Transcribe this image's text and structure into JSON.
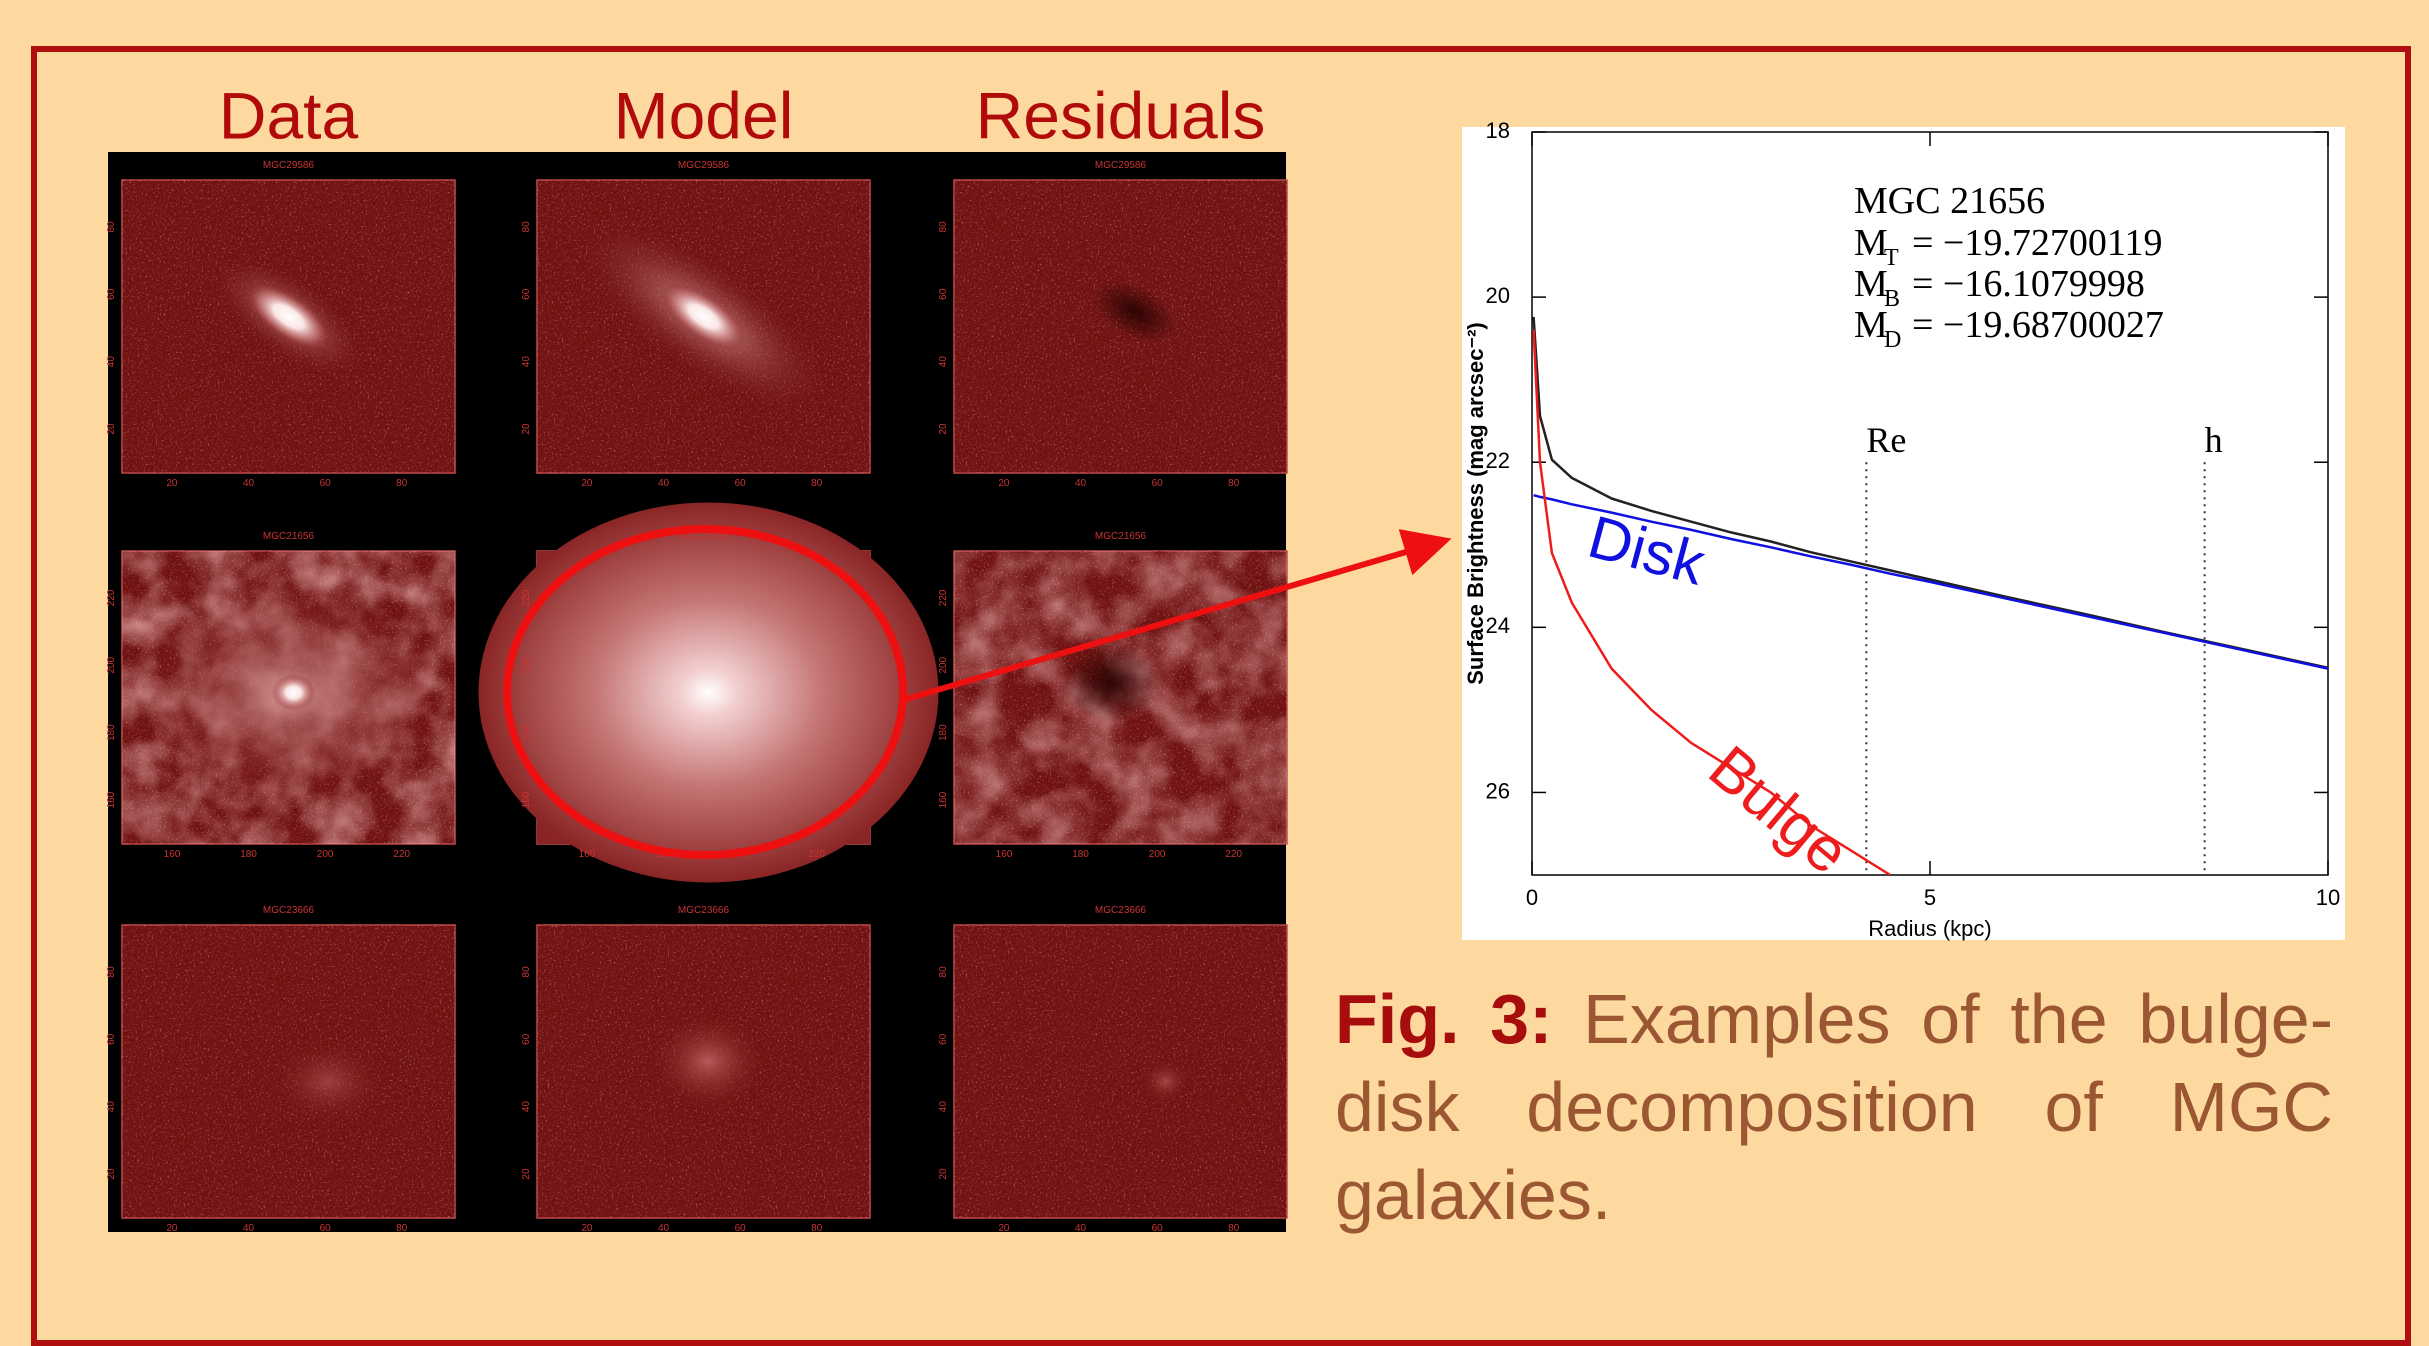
{
  "columns": [
    "Data",
    "Model",
    "Residuals"
  ],
  "galaxies": [
    {
      "label": "MGC29586",
      "ticks": [
        20,
        40,
        60,
        80
      ]
    },
    {
      "label": "MGC21656",
      "ticks": [
        160,
        180,
        200,
        220
      ]
    },
    {
      "label": "MGC23666",
      "ticks": [
        20,
        40,
        60,
        80
      ]
    }
  ],
  "chart_data": {
    "type": "line",
    "title": "MGC 21656",
    "annotations": [
      {
        "symbol": "M",
        "subscript": "T",
        "text": "= −19.72700119"
      },
      {
        "symbol": "M",
        "subscript": "B",
        "text": "= −16.1079998"
      },
      {
        "symbol": "M",
        "subscript": "D",
        "text": "= −19.68700027"
      }
    ],
    "x_label": "Radius (kpc)",
    "y_label": "Surface Brightness (mag arcsec⁻²)",
    "x": [
      0.02,
      0.1,
      0.25,
      0.5,
      1,
      1.5,
      2,
      2.5,
      3,
      3.5,
      4,
      4.5,
      5,
      6,
      7,
      8,
      9,
      10
    ],
    "series": [
      {
        "color": "#222222",
        "values": [
          20.24,
          21.44,
          21.97,
          22.19,
          22.44,
          22.59,
          22.72,
          22.85,
          22.96,
          23.09,
          23.2,
          23.31,
          23.42,
          23.64,
          23.85,
          24.07,
          24.28,
          24.49
        ]
      },
      {
        "name": "Disk",
        "color": "#1010e0",
        "values": [
          22.4,
          22.42,
          22.45,
          22.51,
          22.61,
          22.72,
          22.82,
          22.93,
          23.03,
          23.14,
          23.24,
          23.35,
          23.45,
          23.66,
          23.87,
          24.08,
          24.29,
          24.5
        ]
      },
      {
        "name": "Bulge",
        "color": "#ee1c1c",
        "values": [
          20.4,
          22.0,
          23.1,
          23.7,
          24.5,
          25.0,
          25.4,
          25.7,
          26.0,
          26.4,
          26.7,
          27.0,
          null,
          null,
          null,
          null,
          null,
          null
        ]
      }
    ],
    "markers": [
      {
        "label": "Re",
        "x": 4.2
      },
      {
        "label": "h",
        "x": 8.45
      }
    ],
    "xlim": [
      0,
      10
    ],
    "xticks": [
      0,
      5,
      10
    ],
    "ylim": [
      27,
      18
    ],
    "yticks": [
      18,
      20,
      22,
      24,
      26
    ]
  },
  "caption": {
    "label": "Fig. 3:",
    "text": "Examples of the bulge-disk decomposition of MGC galaxies."
  }
}
